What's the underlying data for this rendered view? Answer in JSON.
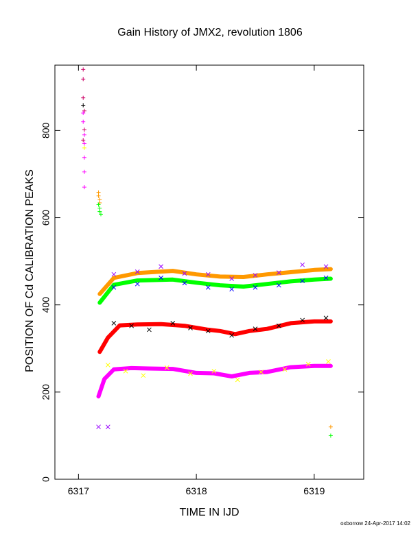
{
  "chart_data": {
    "type": "scatter",
    "title": "Gain History of JMX2, revolution 1806",
    "xlabel": "TIME IN IJD",
    "ylabel": "POSITION OF Cd CALIBRATION PEAKS",
    "xlim": [
      6316.8,
      6319.42
    ],
    "ylim": [
      0,
      950
    ],
    "x_ticks": [
      "6317",
      "6318",
      "6319"
    ],
    "y_ticks": [
      "0",
      "200",
      "400",
      "600",
      "800"
    ],
    "grid": false,
    "legend": "none",
    "footer": "oxborrow 24-Apr-2017 14:02",
    "series": [
      {
        "color": "#ff9900",
        "marker": "line",
        "x": [
          6317.18,
          6317.3,
          6317.5,
          6317.8,
          6318.0,
          6318.2,
          6318.4,
          6318.6,
          6318.8,
          6319.0,
          6319.14
        ],
        "values": [
          425,
          462,
          473,
          478,
          470,
          465,
          464,
          470,
          475,
          480,
          482
        ]
      },
      {
        "color": "#00ff00",
        "marker": "line",
        "x": [
          6317.18,
          6317.3,
          6317.5,
          6317.8,
          6318.0,
          6318.2,
          6318.4,
          6318.6,
          6318.8,
          6319.0,
          6319.14
        ],
        "values": [
          405,
          446,
          456,
          458,
          451,
          445,
          442,
          448,
          454,
          458,
          460
        ]
      },
      {
        "color": "#ff0000",
        "marker": "line",
        "x": [
          6317.18,
          6317.25,
          6317.35,
          6317.5,
          6317.7,
          6317.9,
          6318.1,
          6318.2,
          6318.33,
          6318.45,
          6318.6,
          6318.8,
          6319.0,
          6319.14
        ],
        "values": [
          292,
          325,
          353,
          355,
          356,
          352,
          343,
          340,
          333,
          340,
          345,
          358,
          362,
          362
        ]
      },
      {
        "color": "#ff00ff",
        "marker": "line",
        "x": [
          6317.17,
          6317.22,
          6317.3,
          6317.45,
          6317.6,
          6317.8,
          6318.0,
          6318.15,
          6318.3,
          6318.45,
          6318.6,
          6318.8,
          6319.0,
          6319.14
        ],
        "values": [
          190,
          230,
          252,
          255,
          254,
          253,
          244,
          243,
          236,
          244,
          246,
          257,
          260,
          260
        ]
      },
      {
        "color": "#000000",
        "marker": "x",
        "x": [
          6317.3,
          6317.45,
          6317.6,
          6317.8,
          6317.95,
          6318.1,
          6318.3,
          6318.5,
          6318.7,
          6318.9,
          6319.1
        ],
        "values": [
          358,
          352,
          343,
          358,
          347,
          340,
          330,
          345,
          352,
          365,
          370
        ]
      },
      {
        "color": "#ffff00",
        "marker": "x",
        "x": [
          6317.25,
          6317.4,
          6317.55,
          6317.75,
          6317.95,
          6318.15,
          6318.35,
          6318.55,
          6318.75,
          6318.95,
          6319.12
        ],
        "values": [
          262,
          248,
          238,
          256,
          242,
          248,
          228,
          246,
          252,
          264,
          270
        ]
      },
      {
        "color": "#0000ff",
        "marker": "x",
        "x": [
          6317.3,
          6317.5,
          6317.7,
          6317.9,
          6318.1,
          6318.3,
          6318.5,
          6318.7,
          6318.9,
          6319.1
        ],
        "values": [
          440,
          448,
          462,
          450,
          440,
          436,
          440,
          445,
          455,
          462
        ]
      },
      {
        "color": "#9900ff",
        "marker": "x",
        "x": [
          6317.3,
          6317.5,
          6317.7,
          6317.9,
          6318.1,
          6318.3,
          6318.5,
          6318.7,
          6318.9,
          6319.1
        ],
        "values": [
          470,
          476,
          488,
          472,
          470,
          460,
          468,
          474,
          492,
          488
        ]
      },
      {
        "color": "#9900ff",
        "marker": "x",
        "x": [
          6317.17,
          6317.25
        ],
        "values": [
          120,
          120
        ]
      },
      {
        "color": "#cc0066",
        "marker": "+",
        "x": [
          6317.04,
          6317.04,
          6317.04,
          6317.05,
          6317.05,
          6317.04
        ],
        "values": [
          940,
          918,
          875,
          845,
          802,
          778
        ]
      },
      {
        "color": "#ff00ff",
        "marker": "+",
        "x": [
          6317.04,
          6317.04,
          6317.05,
          6317.05,
          6317.05,
          6317.05,
          6317.05
        ],
        "values": [
          840,
          820,
          790,
          770,
          738,
          705,
          670
        ]
      },
      {
        "color": "#000000",
        "marker": "+",
        "x": [
          6317.04
        ],
        "values": [
          858
        ]
      },
      {
        "color": "#ffff00",
        "marker": "+",
        "x": [
          6317.05
        ],
        "values": [
          760
        ]
      },
      {
        "color": "#ff9900",
        "marker": "+",
        "x": [
          6317.17,
          6317.17,
          6317.18,
          6317.18,
          6319.14
        ],
        "values": [
          658,
          650,
          642,
          634,
          120
        ]
      },
      {
        "color": "#00ff00",
        "marker": "+",
        "x": [
          6317.17,
          6317.18,
          6317.18,
          6317.19,
          6319.14
        ],
        "values": [
          630,
          622,
          614,
          608,
          100
        ]
      }
    ]
  }
}
